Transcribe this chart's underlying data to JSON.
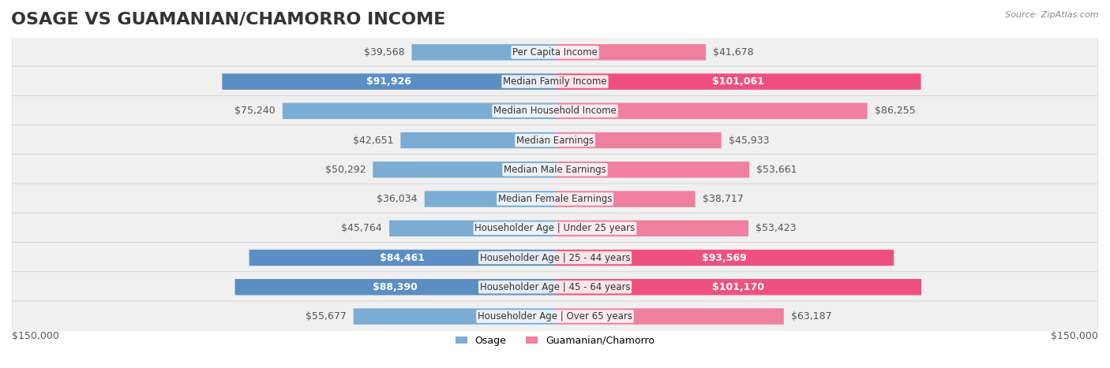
{
  "title": "OSAGE VS GUAMANIAN/CHAMORRO INCOME",
  "source": "Source: ZipAtlas.com",
  "categories": [
    "Per Capita Income",
    "Median Family Income",
    "Median Household Income",
    "Median Earnings",
    "Median Male Earnings",
    "Median Female Earnings",
    "Householder Age | Under 25 years",
    "Householder Age | 25 - 44 years",
    "Householder Age | 45 - 64 years",
    "Householder Age | Over 65 years"
  ],
  "osage_values": [
    39568,
    91926,
    75240,
    42651,
    50292,
    36034,
    45764,
    84461,
    88390,
    55677
  ],
  "chamorro_values": [
    41678,
    101061,
    86255,
    45933,
    53661,
    38717,
    53423,
    93569,
    101170,
    63187
  ],
  "osage_labels": [
    "$39,568",
    "$91,926",
    "$75,240",
    "$42,651",
    "$50,292",
    "$36,034",
    "$45,764",
    "$84,461",
    "$88,390",
    "$55,677"
  ],
  "chamorro_labels": [
    "$41,678",
    "$101,061",
    "$86,255",
    "$45,933",
    "$53,661",
    "$38,717",
    "$53,423",
    "$93,569",
    "$101,170",
    "$63,187"
  ],
  "osage_color": "#7badd4",
  "chamorro_color": "#f080a0",
  "osage_color_highlight": "#5b8fc4",
  "chamorro_color_highlight": "#f05080",
  "osage_label_color_normal": "#555555",
  "osage_label_color_highlight": "#ffffff",
  "chamorro_label_color_normal": "#555555",
  "chamorro_label_color_highlight": "#ffffff",
  "max_value": 150000,
  "row_bg_color": "#f0f0f0",
  "bar_height": 0.55,
  "legend_osage": "Osage",
  "legend_chamorro": "Guamanian/Chamorro",
  "highlight_rows": [
    1,
    7,
    8
  ],
  "title_fontsize": 16,
  "label_fontsize": 9,
  "axis_label_fontsize": 9,
  "category_fontsize": 8.5
}
